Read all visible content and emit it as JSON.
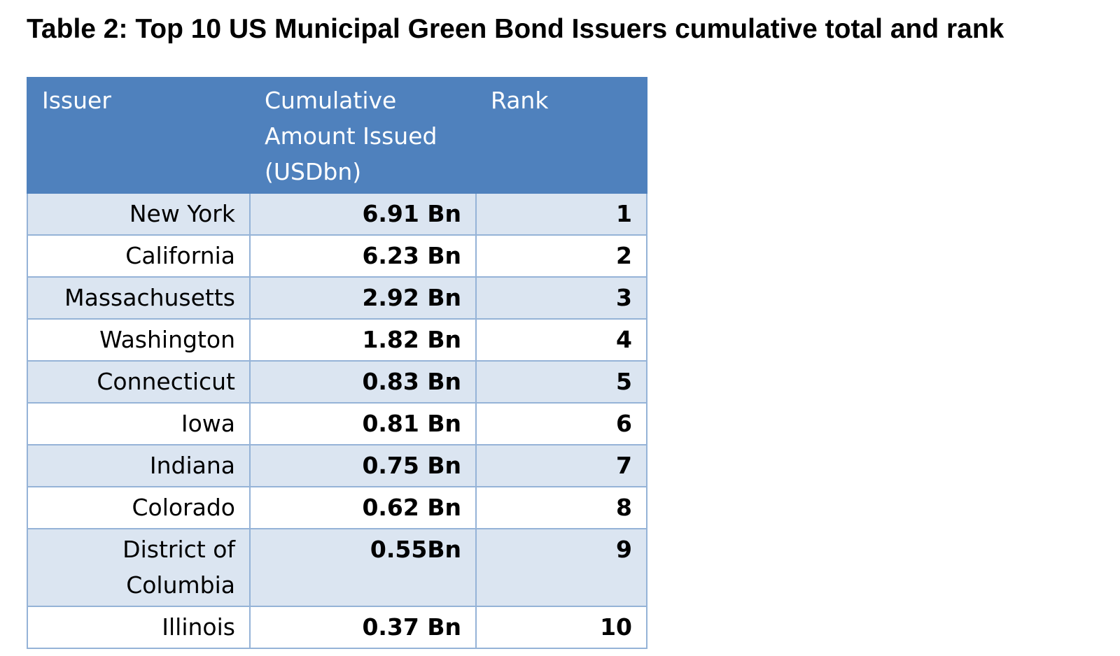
{
  "title": "Table 2: Top 10 US Municipal Green Bond Issuers cumulative total and rank",
  "table": {
    "headers": [
      "Issuer",
      "Cumulative Amount Issued (USDbn)",
      "Rank"
    ],
    "rows": [
      {
        "issuer": "New York",
        "amount": "6.91 Bn",
        "rank": "1"
      },
      {
        "issuer": "California",
        "amount": "6.23 Bn",
        "rank": "2"
      },
      {
        "issuer": "Massachusetts",
        "amount": "2.92 Bn",
        "rank": "3"
      },
      {
        "issuer": "Washington",
        "amount": "1.82 Bn",
        "rank": "4"
      },
      {
        "issuer": "Connecticut",
        "amount": "0.83 Bn",
        "rank": "5"
      },
      {
        "issuer": "Iowa",
        "amount": "0.81 Bn",
        "rank": "6"
      },
      {
        "issuer": "Indiana",
        "amount": "0.75 Bn",
        "rank": "7"
      },
      {
        "issuer": "Colorado",
        "amount": "0.62 Bn",
        "rank": "8"
      },
      {
        "issuer": "District of Columbia",
        "amount": "0.55Bn",
        "rank": "9"
      },
      {
        "issuer": "Illinois",
        "amount": "0.37 Bn",
        "rank": "10"
      }
    ]
  },
  "colors": {
    "header_background": "#4f81bd",
    "header_text": "#ffffff",
    "band_row": "#dbe5f1",
    "plain_row": "#ffffff",
    "grid_line": "#95b3d7"
  }
}
